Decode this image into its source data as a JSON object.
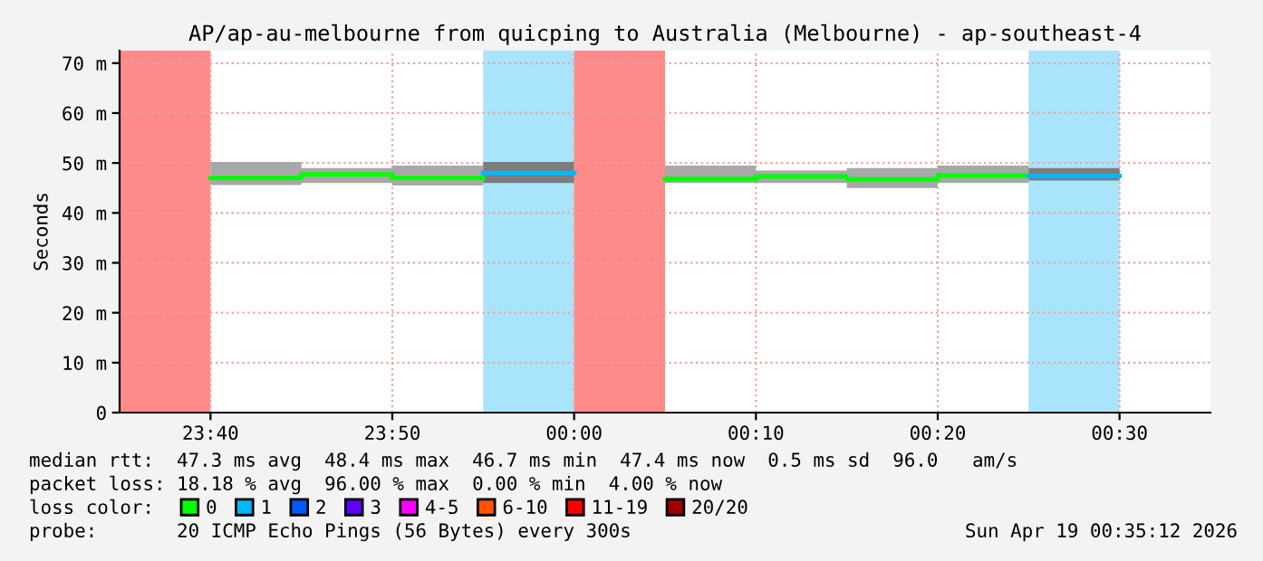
{
  "chart_data": {
    "type": "line",
    "title": "AP/ap-au-melbourne from quicping to Australia (Melbourne) - ap-southeast-4",
    "ylabel": "Seconds",
    "series": [
      {
        "name": "0",
        "color": "#00ff00",
        "x": [
          "2026-04-18T23:40",
          "2026-04-18T23:45",
          "2026-04-18T23:45",
          "2026-04-18T23:50",
          "2026-04-18T23:50",
          "2026-04-18T23:55",
          "2026-04-19T00:00",
          "2026-04-19T00:05",
          "2026-04-19T00:10",
          "2026-04-19T00:10",
          "2026-04-19T00:15",
          "2026-04-19T00:15",
          "2026-04-19T00:20",
          "2026-04-19T00:20",
          "2026-04-19T00:25"
        ],
        "values": [
          47.0,
          47.0,
          47.7,
          47.7,
          47.0,
          47.0,
          null,
          46.8,
          46.8,
          47.3,
          47.3,
          46.7,
          46.7,
          47.5,
          47.5
        ],
        "lower": [
          45.6,
          45.6,
          46.0,
          46.0,
          45.5,
          45.5,
          null,
          46.0,
          46.0,
          46.0,
          46.0,
          45.0,
          45.0,
          46.0,
          46.0
        ],
        "upper": [
          50.2,
          50.2,
          49.0,
          49.0,
          49.5,
          49.5,
          null,
          49.5,
          49.5,
          48.5,
          48.5,
          49.0,
          49.0,
          49.5,
          49.5
        ]
      },
      {
        "name": "1",
        "color": "#00b8ff",
        "x": [
          "2026-04-18T23:55",
          "2026-04-19T00:00",
          "2026-04-19T00:15",
          "2026-04-19T00:25",
          "2026-04-19T00:30"
        ],
        "values": [
          48.0,
          48.0,
          null,
          47.4,
          47.4
        ],
        "lower": [
          46.0,
          46.0,
          null,
          46.5,
          46.5
        ],
        "upper": [
          50.2,
          50.2,
          null,
          49.0,
          49.0
        ]
      },
      {
        "name": "2",
        "color": "#0059ff"
      },
      {
        "name": "3",
        "color": "#5e00ff"
      },
      {
        "name": "4-5",
        "color": "#ff00ff"
      },
      {
        "name": "6-10",
        "color": "#ff5500"
      },
      {
        "name": "11-19",
        "color": "#ff0000"
      },
      {
        "name": "20/20",
        "color": "#a10000"
      }
    ],
    "bands": [
      {
        "axis": "x",
        "from": "2026-04-18T23:35",
        "to": "2026-04-18T23:40",
        "color": "#ff8a8a"
      },
      {
        "axis": "x",
        "from": "2026-04-18T23:55",
        "to": "2026-04-19T00:00",
        "color": "#a8e4fb"
      },
      {
        "axis": "x",
        "from": "2026-04-19T00:00",
        "to": "2026-04-19T00:05",
        "color": "#ff8a8a"
      },
      {
        "axis": "x",
        "from": "2026-04-19T00:25",
        "to": "2026-04-19T00:30",
        "color": "#a8e4fb"
      }
    ],
    "xlim": [
      "2026-04-18T23:35",
      "2026-04-19T00:35"
    ],
    "xticks": [
      {
        "value": "2026-04-18T23:40",
        "label": "23:40"
      },
      {
        "value": "2026-04-18T23:50",
        "label": "23:50"
      },
      {
        "value": "2026-04-19T00:00",
        "label": "00:00"
      },
      {
        "value": "2026-04-19T00:10",
        "label": "00:10"
      },
      {
        "value": "2026-04-19T00:20",
        "label": "00:20"
      },
      {
        "value": "2026-04-19T00:30",
        "label": "00:30"
      }
    ],
    "ylim": [
      0,
      72.5
    ],
    "yticks": [
      0,
      {
        "value": 10,
        "label": "10 m"
      },
      {
        "value": 20,
        "label": "20 m"
      },
      {
        "value": 30,
        "label": "30 m"
      },
      {
        "value": 40,
        "label": "40 m"
      },
      {
        "value": 50,
        "label": "50 m"
      },
      {
        "value": 60,
        "label": "60 m"
      },
      {
        "value": 70,
        "label": "70 m"
      }
    ],
    "grid": true,
    "legend": "bottom",
    "legend_title": "loss color:",
    "annotations": [
      "median rtt:  47.3 ms avg  48.4 ms max  46.7 ms min  47.4 ms now  0.5 ms sd  96.0   am/s",
      "packet loss: 18.18 % avg  96.00 % max  0.00 % min  4.00 % now",
      "probe:       20 ICMP Echo Pings (56 Bytes) every 300s",
      "Sun Apr 19 00:35:12 2026"
    ]
  }
}
